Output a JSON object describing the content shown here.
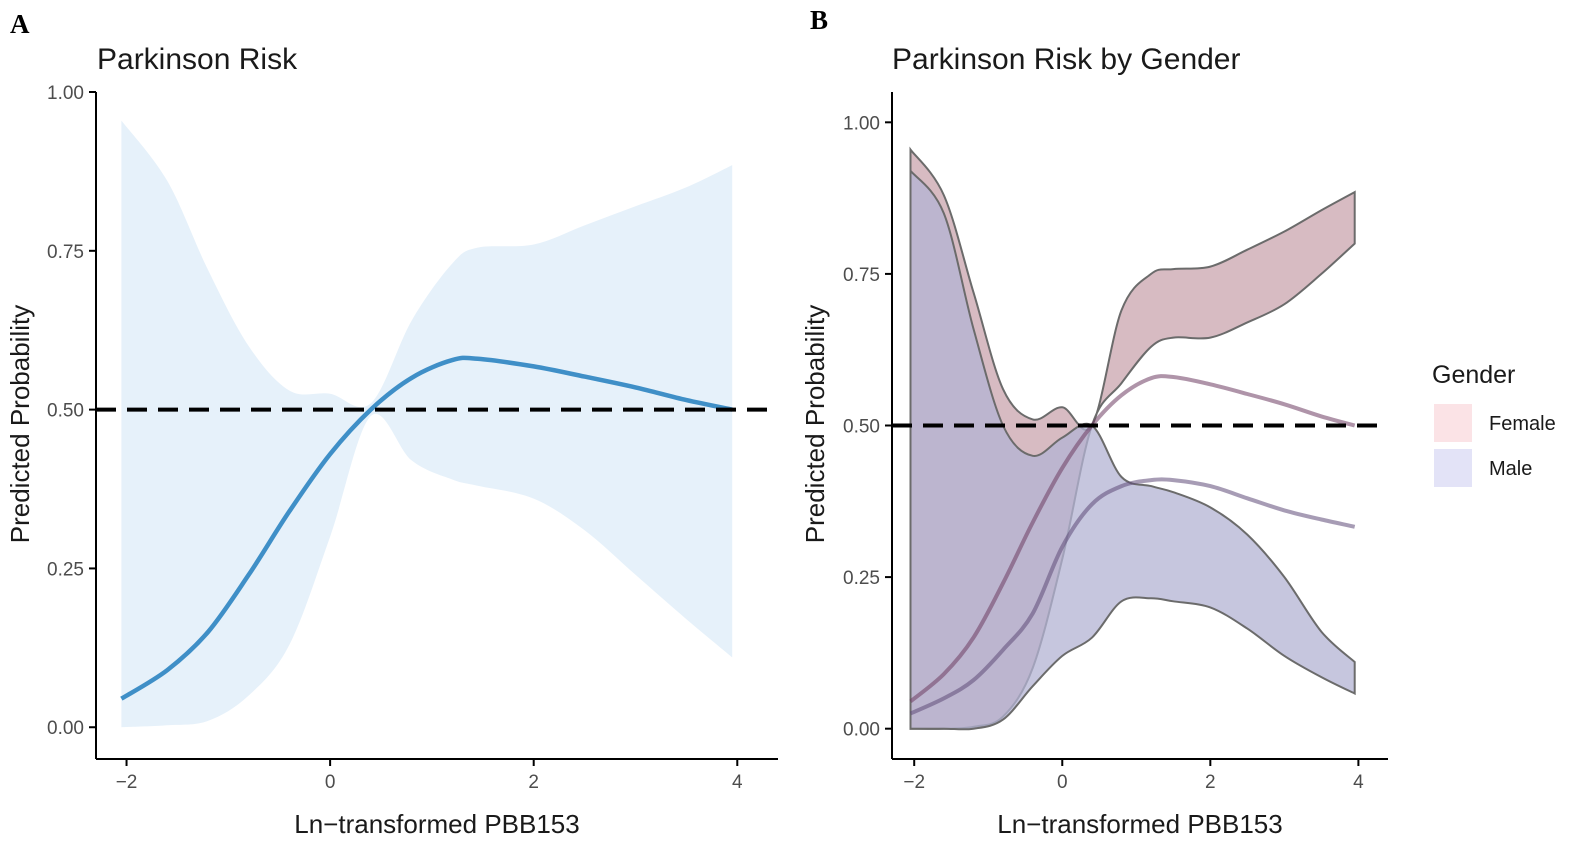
{
  "chart_data": [
    {
      "panel": "A",
      "type": "line",
      "title": "Parkinson Risk",
      "xlabel": "Ln−transformed PBB153",
      "ylabel": "Predicted Probability",
      "xlim": [
        -2.3,
        4.4
      ],
      "ylim": [
        -0.05,
        1.0
      ],
      "xticks": [
        -2,
        0,
        2,
        4
      ],
      "xtick_labels": [
        "−2",
        "0",
        "2",
        "4"
      ],
      "yticks": [
        0,
        0.25,
        0.5,
        0.75,
        1.0
      ],
      "ytick_labels": [
        "0.00",
        "0.25",
        "0.50",
        "0.75",
        "1.00"
      ],
      "reference_line": {
        "y": 0.5,
        "style": "dashed"
      },
      "series": [
        {
          "name": "Predicted",
          "color": "#3f8fc7",
          "band_color": "#e6f1fa",
          "x": [
            -2.05,
            -1.6,
            -1.2,
            -0.8,
            -0.4,
            0.0,
            0.4,
            0.8,
            1.2,
            1.45,
            2.0,
            2.5,
            3.0,
            3.5,
            3.95
          ],
          "y": [
            0.045,
            0.09,
            0.15,
            0.24,
            0.34,
            0.43,
            0.5,
            0.55,
            0.578,
            0.58,
            0.568,
            0.552,
            0.535,
            0.515,
            0.5
          ],
          "lower": [
            0.0,
            0.003,
            0.01,
            0.05,
            0.13,
            0.3,
            0.49,
            0.42,
            0.39,
            0.38,
            0.36,
            0.31,
            0.24,
            0.17,
            0.11
          ],
          "upper": [
            0.955,
            0.86,
            0.72,
            0.6,
            0.53,
            0.525,
            0.51,
            0.64,
            0.73,
            0.755,
            0.76,
            0.79,
            0.82,
            0.85,
            0.885
          ]
        }
      ]
    },
    {
      "panel": "B",
      "type": "line",
      "title": "Parkinson Risk by Gender",
      "xlabel": "Ln−transformed PBB153",
      "ylabel": "Predicted Probability",
      "xlim": [
        -2.3,
        4.4
      ],
      "ylim": [
        -0.05,
        1.05
      ],
      "xticks": [
        -2,
        0,
        2,
        4
      ],
      "xtick_labels": [
        "−2",
        "0",
        "2",
        "4"
      ],
      "yticks": [
        0,
        0.25,
        0.5,
        0.75,
        1.0
      ],
      "ytick_labels": [
        "0.00",
        "0.25",
        "0.50",
        "0.75",
        "1.00"
      ],
      "reference_line": {
        "y": 0.5,
        "style": "dashed"
      },
      "legend": {
        "title": "Gender",
        "position": "right",
        "entries": [
          "Female",
          "Male"
        ]
      },
      "series": [
        {
          "name": "Female",
          "color": "#6e3c62",
          "band_color": "#c9a4ad",
          "swatch_color": "#fbe3e6",
          "x": [
            -2.05,
            -1.6,
            -1.2,
            -0.8,
            -0.4,
            0.0,
            0.4,
            0.8,
            1.2,
            1.5,
            2.0,
            2.5,
            3.0,
            3.5,
            3.95
          ],
          "y": [
            0.045,
            0.09,
            0.15,
            0.24,
            0.34,
            0.43,
            0.5,
            0.55,
            0.578,
            0.58,
            0.568,
            0.552,
            0.535,
            0.515,
            0.5
          ],
          "lower": [
            0.0,
            0.0,
            0.003,
            0.02,
            0.1,
            0.28,
            0.5,
            0.57,
            0.63,
            0.645,
            0.645,
            0.67,
            0.7,
            0.75,
            0.8
          ],
          "upper": [
            0.955,
            0.88,
            0.72,
            0.56,
            0.51,
            0.53,
            0.5,
            0.69,
            0.75,
            0.758,
            0.762,
            0.79,
            0.82,
            0.855,
            0.885
          ]
        },
        {
          "name": "Male",
          "color": "#5e4a78",
          "band_color": "#b3b3d3",
          "swatch_color": "#e3e3f7",
          "x": [
            -2.05,
            -1.6,
            -1.2,
            -0.8,
            -0.4,
            0.0,
            0.4,
            0.8,
            1.2,
            1.5,
            2.0,
            2.5,
            3.0,
            3.5,
            3.95
          ],
          "y": [
            0.025,
            0.05,
            0.08,
            0.13,
            0.19,
            0.3,
            0.37,
            0.4,
            0.41,
            0.41,
            0.4,
            0.38,
            0.36,
            0.345,
            0.333
          ],
          "lower": [
            0.0,
            0.0,
            0.0,
            0.015,
            0.07,
            0.12,
            0.15,
            0.21,
            0.215,
            0.21,
            0.2,
            0.165,
            0.12,
            0.085,
            0.058
          ],
          "upper": [
            0.92,
            0.85,
            0.66,
            0.5,
            0.45,
            0.48,
            0.5,
            0.415,
            0.4,
            0.39,
            0.365,
            0.32,
            0.25,
            0.16,
            0.11
          ]
        }
      ]
    }
  ],
  "panels": {
    "a": {
      "letter": "A"
    },
    "b": {
      "letter": "B"
    }
  }
}
